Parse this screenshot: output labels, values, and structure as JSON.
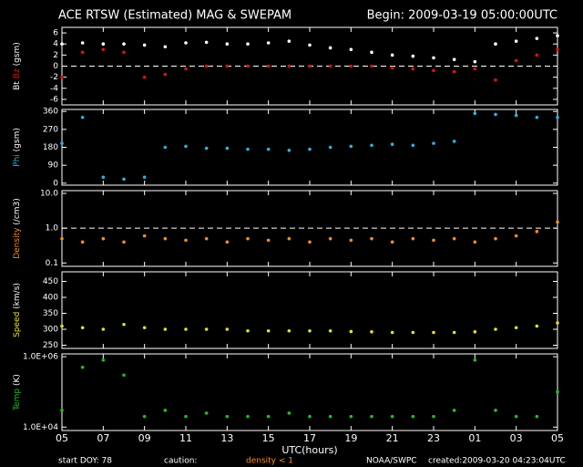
{
  "header": {
    "title": "ACE RTSW (Estimated) MAG & SWEPAM",
    "begin": "Begin: 2009-03-19 05:00:00UTC"
  },
  "x_axis": {
    "label": "UTC(hours)",
    "xlim": [
      0,
      24
    ],
    "xticks": [
      {
        "value": 0,
        "label": "05"
      },
      {
        "value": 2,
        "label": "07"
      },
      {
        "value": 4,
        "label": "09"
      },
      {
        "value": 6,
        "label": "11"
      },
      {
        "value": 8,
        "label": "13"
      },
      {
        "value": 10,
        "label": "15"
      },
      {
        "value": 12,
        "label": "17"
      },
      {
        "value": 14,
        "label": "19"
      },
      {
        "value": 16,
        "label": "21"
      },
      {
        "value": 18,
        "label": "23"
      },
      {
        "value": 20,
        "label": "01"
      },
      {
        "value": 22,
        "label": "03"
      },
      {
        "value": 24,
        "label": "05"
      }
    ]
  },
  "chart_data": [
    {
      "type": "scatter",
      "ylabel": "(gsm)",
      "ylim": [
        -7,
        7
      ],
      "yticks": [
        -6,
        -4,
        -2,
        0,
        2,
        4,
        6
      ],
      "refline": 0,
      "ylog": false,
      "x": [
        0,
        1,
        2,
        3,
        4,
        5,
        6,
        7,
        8,
        9,
        10,
        11,
        12,
        13,
        14,
        15,
        16,
        17,
        18,
        19,
        20,
        21,
        22,
        23,
        24
      ],
      "series": [
        {
          "name": "Bt",
          "color": "#ffffff",
          "values": [
            4,
            4.2,
            4,
            4,
            3.8,
            3.5,
            4.2,
            4.3,
            4,
            4,
            4.2,
            4.5,
            3.8,
            3.3,
            3,
            2.5,
            2,
            1.8,
            1.5,
            1.2,
            0.8,
            4,
            4.5,
            5,
            5.5
          ]
        },
        {
          "name": "Bz",
          "color": "#e01010",
          "values": [
            -2,
            2.5,
            3,
            2.5,
            -2,
            -1.5,
            -0.5,
            0,
            0,
            0,
            0,
            0,
            0,
            0,
            0,
            0,
            -0.3,
            -0.5,
            -0.8,
            -1,
            -0.5,
            -2.5,
            1,
            2,
            3
          ]
        }
      ]
    },
    {
      "type": "scatter",
      "ylabel": "(gsm)",
      "ylim": [
        -10,
        370
      ],
      "yticks": [
        0,
        90,
        180,
        270,
        360
      ],
      "ylog": false,
      "x": [
        0,
        1,
        2,
        3,
        4,
        5,
        6,
        7,
        8,
        9,
        10,
        11,
        12,
        13,
        14,
        15,
        16,
        17,
        18,
        19,
        20,
        21,
        22,
        23,
        24
      ],
      "series": [
        {
          "name": "Phi",
          "color": "#30b0e0",
          "values": [
            200,
            330,
            30,
            20,
            30,
            180,
            185,
            175,
            175,
            170,
            170,
            165,
            170,
            180,
            185,
            190,
            195,
            190,
            200,
            210,
            350,
            345,
            340,
            330,
            330
          ]
        }
      ]
    },
    {
      "type": "scatter",
      "ylabel": "(/cm3)",
      "ylim": [
        0.08,
        12
      ],
      "yticks": [
        0.1,
        {
          "value": 1,
          "label": "1.0"
        },
        {
          "value": 10,
          "label": "10.0"
        }
      ],
      "refline": 1,
      "ylog": true,
      "x": [
        0,
        1,
        2,
        3,
        4,
        5,
        6,
        7,
        8,
        9,
        10,
        11,
        12,
        13,
        14,
        15,
        16,
        17,
        18,
        19,
        20,
        21,
        22,
        23,
        24
      ],
      "series": [
        {
          "name": "Density",
          "color": "#ff8c20",
          "values": [
            0.5,
            0.4,
            0.5,
            0.4,
            0.6,
            0.5,
            0.45,
            0.5,
            0.4,
            0.5,
            0.45,
            0.5,
            0.4,
            0.5,
            0.45,
            0.5,
            0.4,
            0.5,
            0.45,
            0.5,
            0.4,
            0.5,
            0.6,
            0.8,
            1.5
          ]
        }
      ]
    },
    {
      "type": "scatter",
      "ylabel": "(km/s)",
      "ylim": [
        240,
        480
      ],
      "yticks": [
        250,
        300,
        350,
        400,
        450
      ],
      "ylog": false,
      "x": [
        0,
        1,
        2,
        3,
        4,
        5,
        6,
        7,
        8,
        9,
        10,
        11,
        12,
        13,
        14,
        15,
        16,
        17,
        18,
        19,
        20,
        21,
        22,
        23,
        24
      ],
      "series": [
        {
          "name": "Speed",
          "color": "#e8e020",
          "values": [
            310,
            305,
            300,
            315,
            305,
            300,
            300,
            300,
            300,
            295,
            295,
            295,
            295,
            295,
            293,
            292,
            290,
            290,
            290,
            290,
            292,
            300,
            305,
            310,
            320
          ]
        }
      ]
    },
    {
      "type": "scatter",
      "ylabel": "(K)",
      "ylim": [
        8000,
        1200000
      ],
      "yticks": [
        {
          "value": 10000,
          "label": "1.0E+04"
        },
        {
          "value": 1000000,
          "label": "1.0E+06"
        }
      ],
      "ylog": true,
      "x": [
        0,
        1,
        2,
        3,
        4,
        5,
        6,
        7,
        8,
        9,
        10,
        11,
        12,
        13,
        14,
        15,
        16,
        17,
        18,
        19,
        20,
        21,
        22,
        23,
        24
      ],
      "series": [
        {
          "name": "Temp",
          "color": "#20c020",
          "values": [
            30000,
            500000,
            800000,
            300000,
            20000,
            30000,
            20000,
            25000,
            20000,
            20000,
            20000,
            25000,
            20000,
            20000,
            20000,
            20000,
            20000,
            20000,
            20000,
            30000,
            800000,
            30000,
            20000,
            20000,
            100000
          ]
        }
      ]
    }
  ],
  "footer": {
    "doy": "start DOY:  78",
    "caution": "caution:",
    "note": "density < 1",
    "source": "NOAA/SWPC",
    "created": "created:2009-03-20 04:23:04UTC"
  }
}
